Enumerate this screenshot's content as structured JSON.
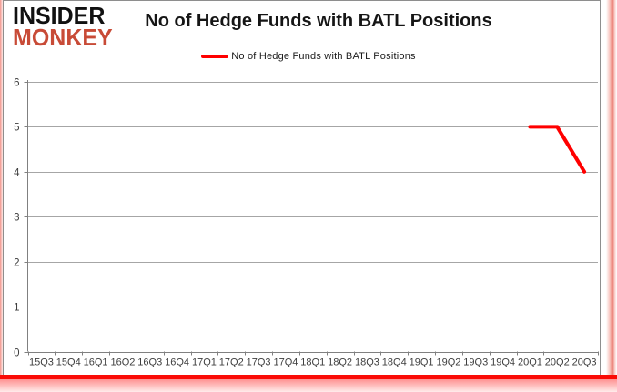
{
  "logo": {
    "line1": "INSIDER",
    "line2": "MONKEY"
  },
  "header": {
    "title": "No of Hedge Funds with BATL Positions"
  },
  "legend": {
    "label": "No of Hedge Funds with BATL Positions",
    "swatch_color": "#ff0000"
  },
  "colors": {
    "accent_red": "#ff0000",
    "logo_red": "#c84b37",
    "frame_border_gray": "#8e8e8e",
    "gridline_gray": "#a6a6a6",
    "axis_gray": "#808080",
    "tick_label": "#3d3d3d"
  },
  "chart_data": {
    "type": "line",
    "title": "No of Hedge Funds with BATL Positions",
    "categories": [
      "15Q3",
      "15Q4",
      "16Q1",
      "16Q2",
      "16Q3",
      "16Q4",
      "17Q1",
      "17Q2",
      "17Q3",
      "17Q4",
      "18Q1",
      "18Q2",
      "18Q3",
      "18Q4",
      "19Q1",
      "19Q2",
      "19Q3",
      "19Q4",
      "20Q1",
      "20Q2",
      "20Q3"
    ],
    "series": [
      {
        "name": "No of Hedge Funds with BATL Positions",
        "color": "#ff0000",
        "values": [
          null,
          null,
          null,
          null,
          null,
          null,
          null,
          null,
          null,
          null,
          null,
          null,
          null,
          null,
          null,
          null,
          null,
          null,
          5,
          5,
          4
        ]
      }
    ],
    "ylim": [
      0,
      6
    ],
    "yticks": [
      0,
      1,
      2,
      3,
      4,
      5,
      6
    ],
    "grid": true,
    "legend_position": "top-center"
  }
}
